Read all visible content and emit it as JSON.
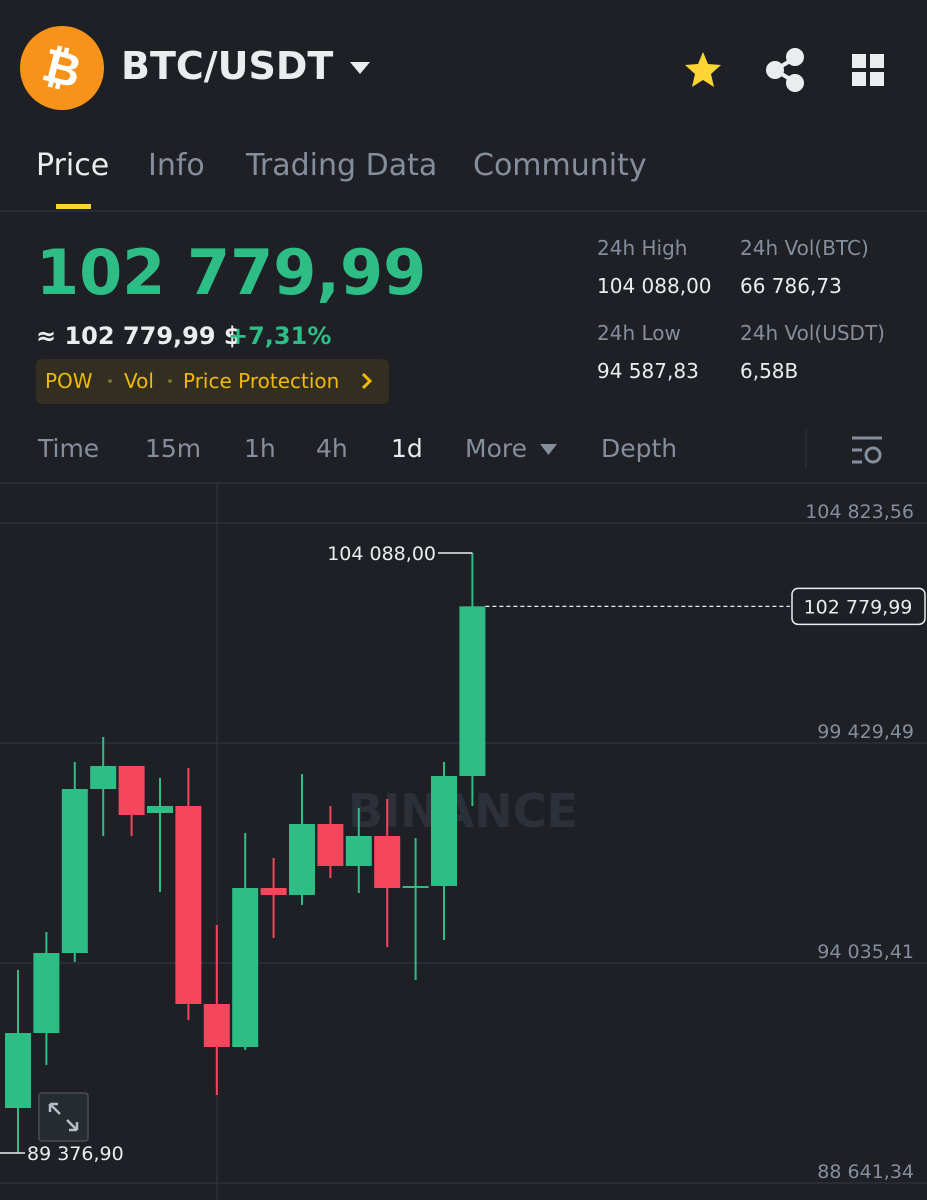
{
  "header": {
    "pair": "BTC/USDT"
  },
  "tabs": {
    "items": [
      "Price",
      "Info",
      "Trading Data",
      "Community"
    ],
    "active": 0
  },
  "price": {
    "last": "102 779,99",
    "approx": "≈ 102 779,99 $",
    "change": "+7,31%"
  },
  "tags": [
    "POW",
    "Vol",
    "Price Protection"
  ],
  "stats": [
    {
      "label": "24h High",
      "value": "104 088,00"
    },
    {
      "label": "24h Vol(BTC)",
      "value": "66 786,73"
    },
    {
      "label": "24h Low",
      "value": "94 587,83"
    },
    {
      "label": "24h Vol(USDT)",
      "value": "6,58B"
    }
  ],
  "intervals": {
    "items": [
      "Time",
      "15m",
      "1h",
      "4h",
      "1d",
      "More",
      "Depth"
    ],
    "active": 4
  },
  "chart_data": {
    "type": "candlestick",
    "watermark": "BINANCE",
    "up_color": "#2ebd85",
    "down_color": "#f6465d",
    "open": [
      90480,
      92319,
      94280,
      98301,
      98866,
      97713,
      97885,
      93030,
      91976,
      95874,
      95702,
      97443,
      96414,
      97149,
      95874,
      95923,
      98620
    ],
    "high": [
      93864,
      94795,
      98964,
      99577,
      98866,
      98571,
      98816,
      94967,
      97223,
      96610,
      98669,
      97885,
      97836,
      98056,
      97100,
      98964,
      104088
    ],
    "low": [
      89376.9,
      91534,
      94060,
      97149,
      97149,
      95776,
      92637,
      90799,
      91902,
      94648,
      95457,
      96119,
      95751,
      94427,
      93619,
      94599,
      97885
    ],
    "close": [
      92319,
      94280,
      98301,
      98866,
      97664,
      97885,
      93030,
      91976,
      95874,
      95702,
      97443,
      96414,
      97149,
      95874,
      95923,
      98620,
      102779.99
    ],
    "ylim": [
      88347,
      105755
    ],
    "yticks": [
      {
        "value": 104823.56,
        "label": "104 823,56"
      },
      {
        "value": 99429.49,
        "label": "99 429,49"
      },
      {
        "value": 94035.41,
        "label": "94 035,41"
      },
      {
        "value": 88641.34,
        "label": "88 641,34"
      }
    ],
    "annotations": {
      "high": {
        "value": 104088,
        "label": "104 088,00"
      },
      "low": {
        "value": 89376.9,
        "label": "89 376,90"
      },
      "last": {
        "value": 102779.99,
        "label": "102 779,99"
      }
    },
    "grid": true
  }
}
